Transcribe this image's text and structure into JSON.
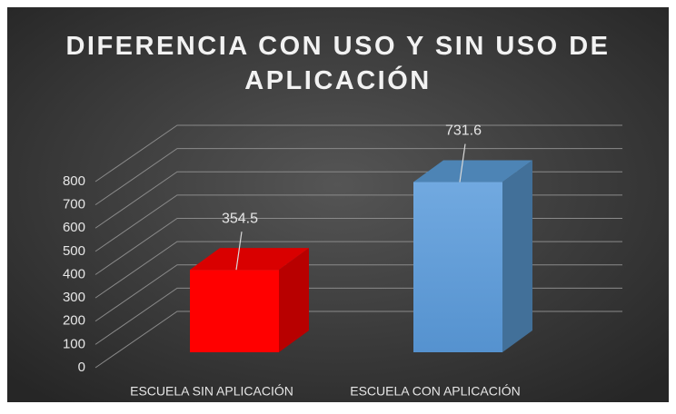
{
  "chart_data": {
    "type": "bar3d",
    "title": "DIFERENCIA CON USO Y SIN USO DE APLICACIÓN",
    "categories": [
      "ESCUELA SIN APLICACIÓN",
      "ESCUELA CON APLICACIÓN"
    ],
    "values": [
      354.5,
      731.6
    ],
    "colors": [
      "#ff0000",
      "#5b9bd5"
    ],
    "ylim": [
      0,
      800
    ],
    "yticks": [
      0,
      100,
      200,
      300,
      400,
      500,
      600,
      700,
      800
    ],
    "grid": true
  }
}
